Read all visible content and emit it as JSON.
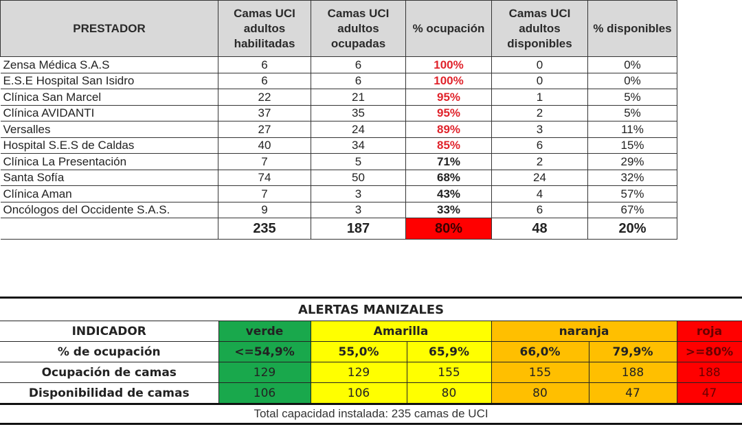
{
  "occupancy_table": {
    "headers": {
      "prestador": "PRESTADOR",
      "habilitadas": "Camas UCI adultos habilitadas",
      "ocupadas": "Camas UCI adultos ocupadas",
      "pct_ocupacion": "% ocupación",
      "disponibles": "Camas UCI adultos disponibles",
      "pct_disponibles": "% disponibles"
    },
    "rows": [
      {
        "prestador": "Zensa Médica S.A.S",
        "habilitadas": "6",
        "ocupadas": "6",
        "pct_ocupacion": "100%",
        "disponibles": "0",
        "pct_disponibles": "0%",
        "occ_color": "red"
      },
      {
        "prestador": "E.S.E Hospital San Isidro",
        "habilitadas": "6",
        "ocupadas": "6",
        "pct_ocupacion": "100%",
        "disponibles": "0",
        "pct_disponibles": "0%",
        "occ_color": "red"
      },
      {
        "prestador": "Clínica San Marcel",
        "habilitadas": "22",
        "ocupadas": "21",
        "pct_ocupacion": "95%",
        "disponibles": "1",
        "pct_disponibles": "5%",
        "occ_color": "red"
      },
      {
        "prestador": "Clínica AVIDANTI",
        "habilitadas": "37",
        "ocupadas": "35",
        "pct_ocupacion": "95%",
        "disponibles": "2",
        "pct_disponibles": "5%",
        "occ_color": "red"
      },
      {
        "prestador": "Versalles",
        "habilitadas": "27",
        "ocupadas": "24",
        "pct_ocupacion": "89%",
        "disponibles": "3",
        "pct_disponibles": "11%",
        "occ_color": "red"
      },
      {
        "prestador": "Hospital S.E.S de Caldas",
        "habilitadas": "40",
        "ocupadas": "34",
        "pct_ocupacion": "85%",
        "disponibles": "6",
        "pct_disponibles": "15%",
        "occ_color": "red"
      },
      {
        "prestador": "Clínica La Presentación",
        "habilitadas": "7",
        "ocupadas": "5",
        "pct_ocupacion": "71%",
        "disponibles": "2",
        "pct_disponibles": "29%",
        "occ_color": "dark"
      },
      {
        "prestador": "Santa Sofía",
        "habilitadas": "74",
        "ocupadas": "50",
        "pct_ocupacion": "68%",
        "disponibles": "24",
        "pct_disponibles": "32%",
        "occ_color": "dark"
      },
      {
        "prestador": "Clínica Aman",
        "habilitadas": "7",
        "ocupadas": "3",
        "pct_ocupacion": "43%",
        "disponibles": "4",
        "pct_disponibles": "57%",
        "occ_color": "dark"
      },
      {
        "prestador": "Oncólogos del Occidente S.A.S.",
        "habilitadas": "9",
        "ocupadas": "3",
        "pct_ocupacion": "33%",
        "disponibles": "6",
        "pct_disponibles": "67%",
        "occ_color": "dark"
      }
    ],
    "totals": {
      "prestador": "",
      "habilitadas": "235",
      "ocupadas": "187",
      "pct_ocupacion": "80%",
      "disponibles": "48",
      "pct_disponibles": "20%"
    }
  },
  "alerts_table": {
    "title": "ALERTAS MANIZALES",
    "indicator_header": "INDICADOR",
    "levels": {
      "verde": "verde",
      "amarilla": "Amarilla",
      "naranja": "naranja",
      "roja": "roja"
    },
    "colors": {
      "verde": "#19a84c",
      "amarilla": "#ffff00",
      "naranja": "#ffbf00",
      "roja": "#ff0000"
    },
    "rows": [
      {
        "label": "% de ocupación",
        "verde": "<=54,9%",
        "amarilla_min": "55,0%",
        "amarilla_max": "65,9%",
        "naranja_min": "66,0%",
        "naranja_max": "79,9%",
        "roja": ">=80%"
      },
      {
        "label": "Ocupación de camas",
        "verde": "129",
        "amarilla_min": "129",
        "amarilla_max": "155",
        "naranja_min": "155",
        "naranja_max": "188",
        "roja": "188"
      },
      {
        "label": "Disponibilidad de camas",
        "verde": "106",
        "amarilla_min": "106",
        "amarilla_max": "80",
        "naranja_min": "80",
        "naranja_max": "47",
        "roja": "47"
      }
    ],
    "footer": "Total capacidad instalada: 235 camas de UCI"
  }
}
